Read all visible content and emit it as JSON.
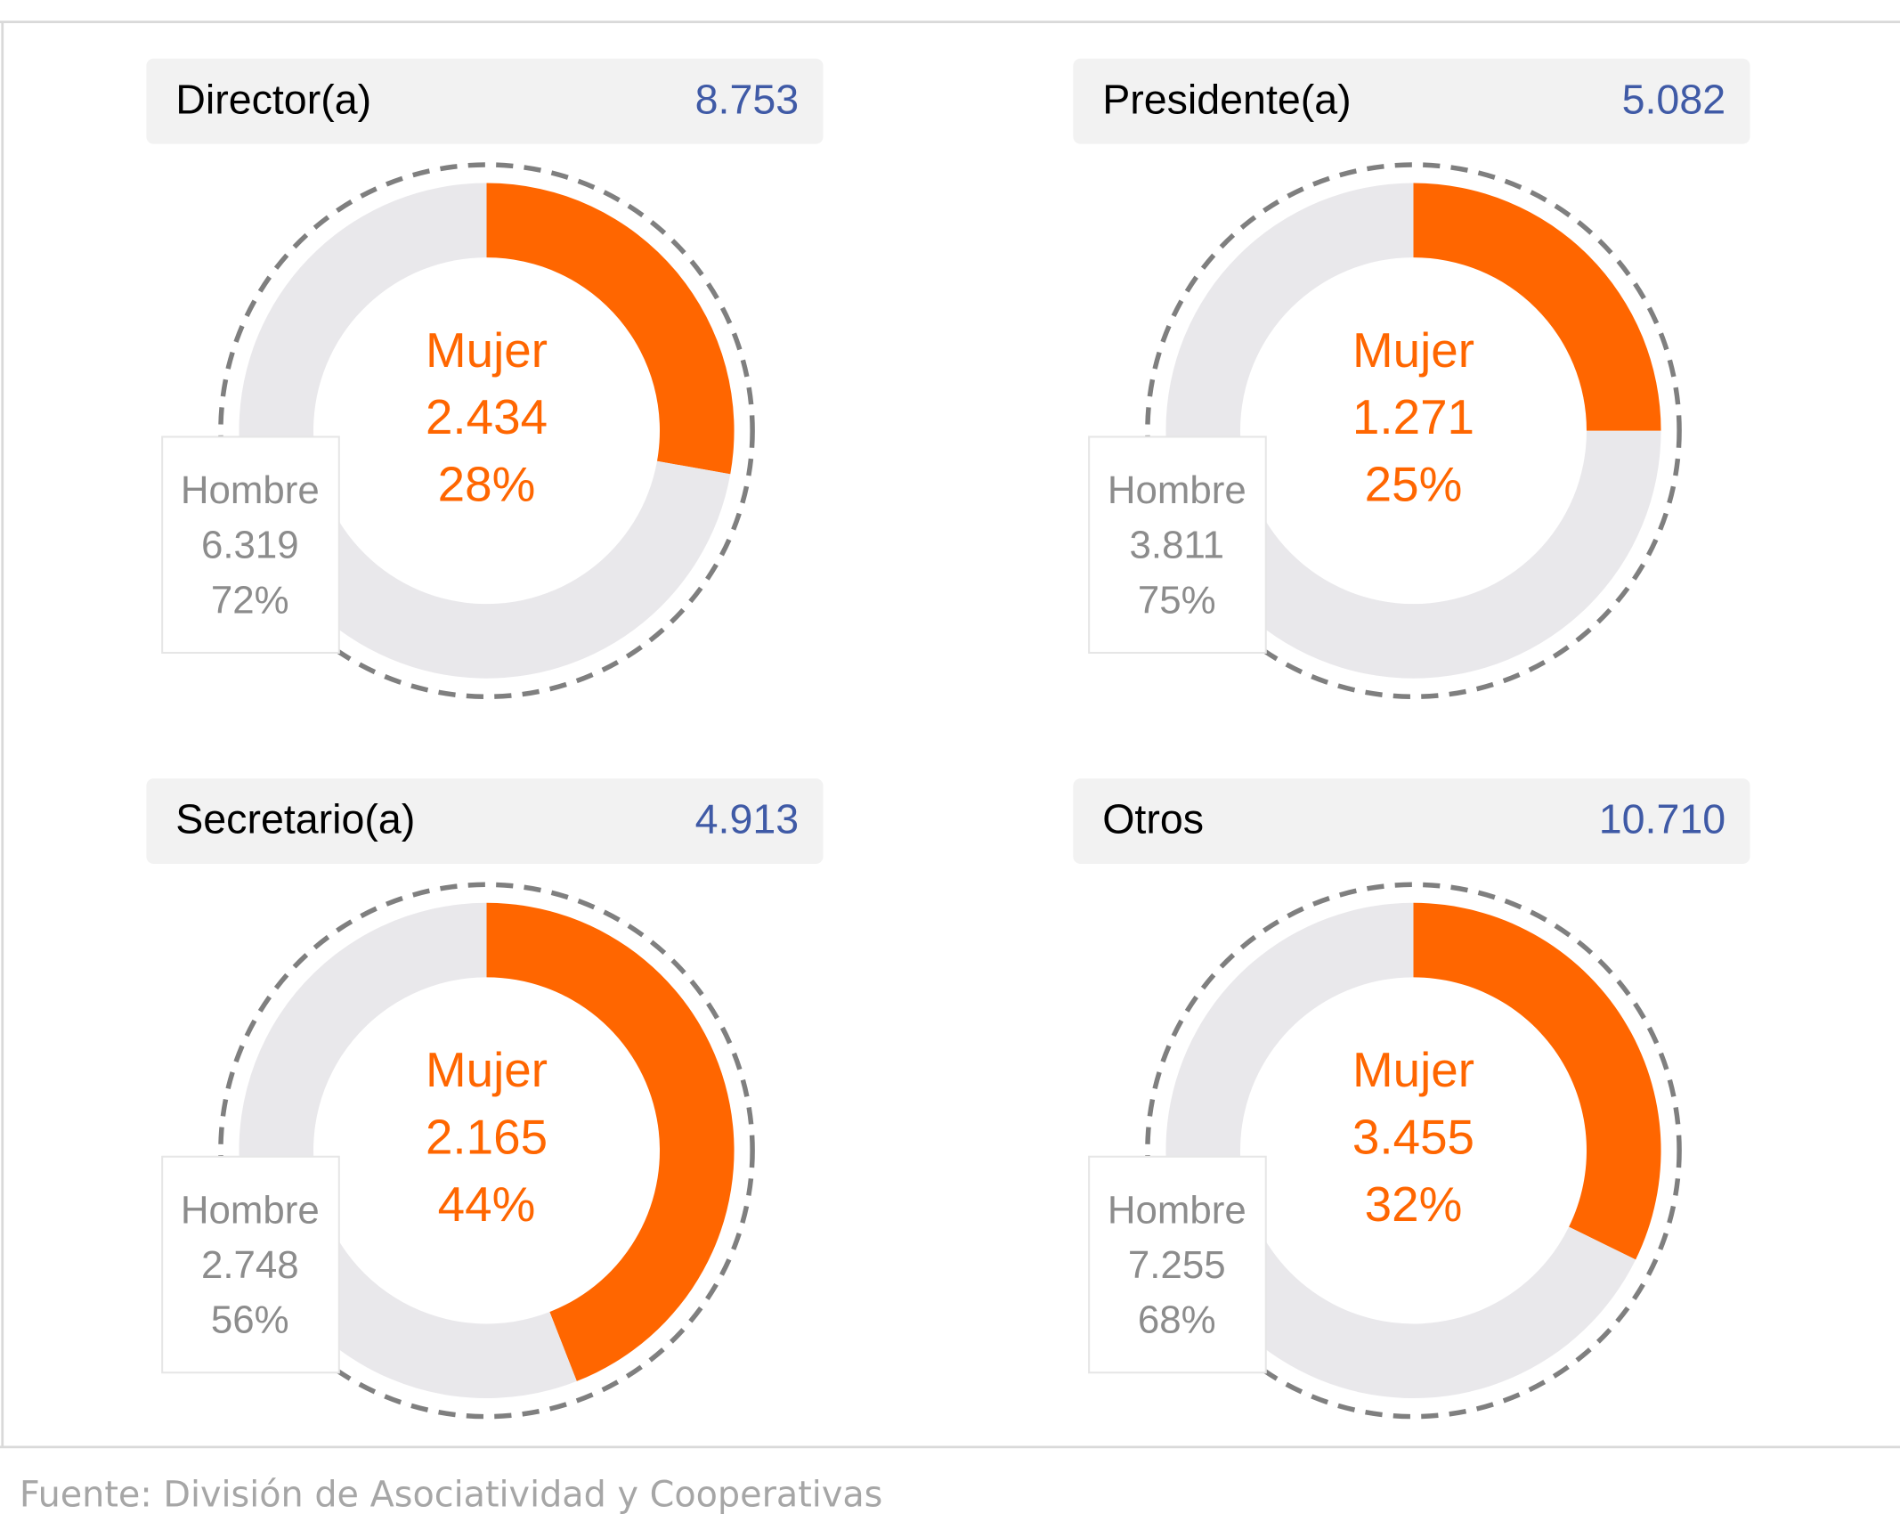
{
  "chart_data": [
    {
      "type": "donut",
      "title": "Director(a)",
      "total": "8.753",
      "categories": [
        "Mujer",
        "Hombre"
      ],
      "values": [
        2434,
        6319
      ],
      "value_labels": [
        "2.434",
        "6.319"
      ],
      "percent_labels": [
        "28%",
        "72%"
      ],
      "colors": [
        "#ff6600",
        "#e9e8eb"
      ]
    },
    {
      "type": "donut",
      "title": "Presidente(a)",
      "total": "5.082",
      "categories": [
        "Mujer",
        "Hombre"
      ],
      "values": [
        1271,
        3811
      ],
      "value_labels": [
        "1.271",
        "3.811"
      ],
      "percent_labels": [
        "25%",
        "75%"
      ],
      "colors": [
        "#ff6600",
        "#e9e8eb"
      ]
    },
    {
      "type": "donut",
      "title": "Secretario(a)",
      "total": "4.913",
      "categories": [
        "Mujer",
        "Hombre"
      ],
      "values": [
        2165,
        2748
      ],
      "value_labels": [
        "2.165",
        "2.748"
      ],
      "percent_labels": [
        "44%",
        "56%"
      ],
      "colors": [
        "#ff6600",
        "#e9e8eb"
      ]
    },
    {
      "type": "donut",
      "title": "Otros",
      "total": "10.710",
      "categories": [
        "Mujer",
        "Hombre"
      ],
      "values": [
        3455,
        7255
      ],
      "value_labels": [
        "3.455",
        "7.255"
      ],
      "percent_labels": [
        "32%",
        "68%"
      ],
      "colors": [
        "#ff6600",
        "#e9e8eb"
      ]
    }
  ],
  "source": "Fuente: División de Asociatividad y Cooperativas"
}
